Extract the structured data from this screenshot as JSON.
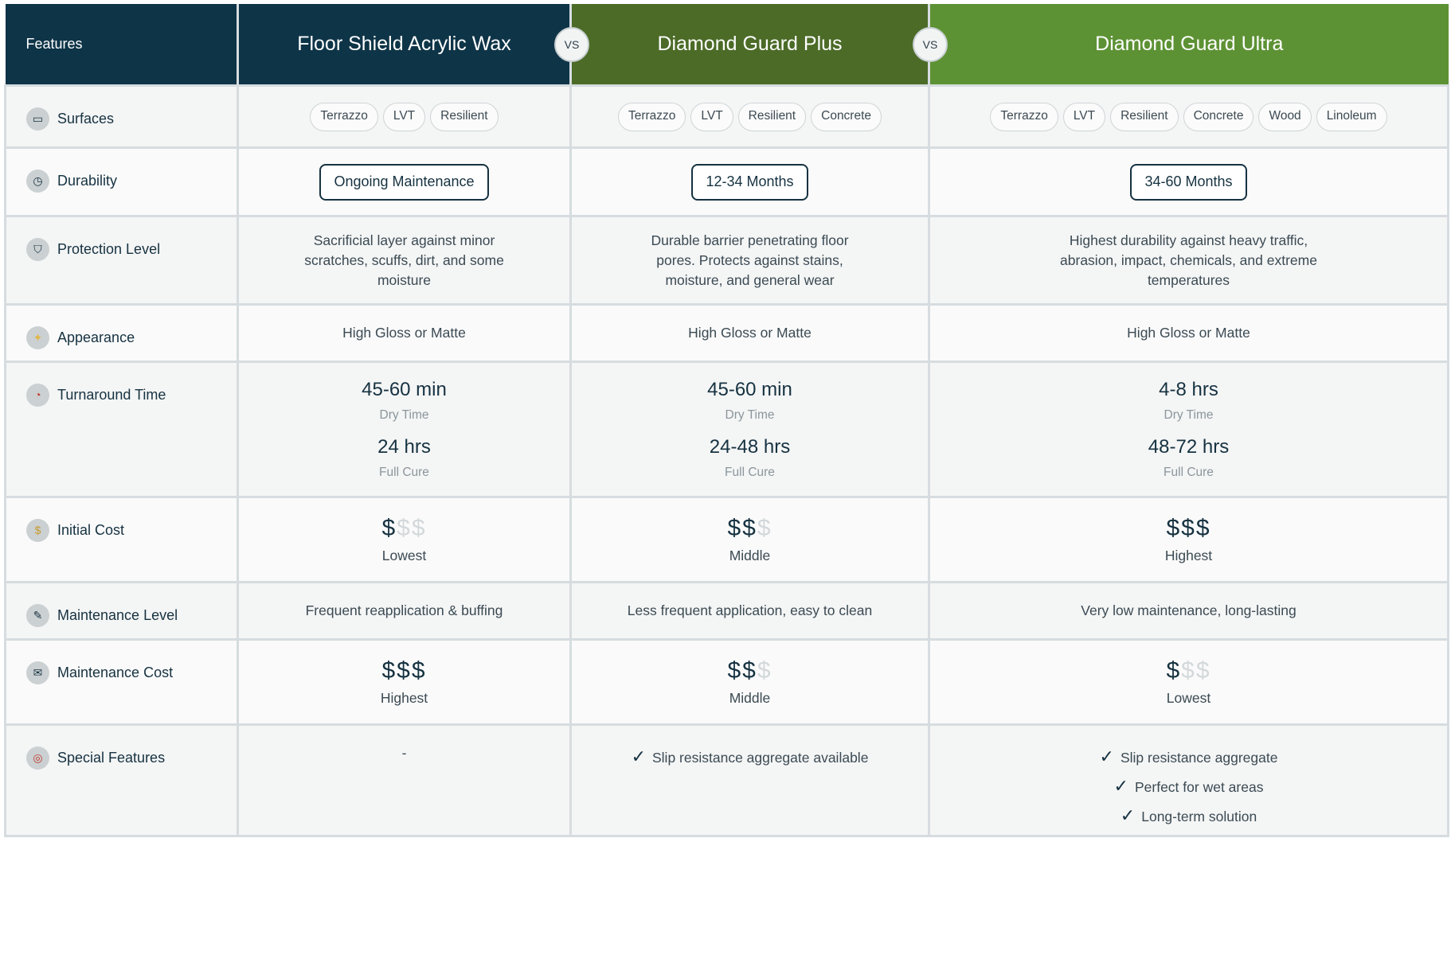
{
  "header": {
    "features_label": "Features",
    "products": [
      "Floor Shield Acrylic Wax",
      "Diamond Guard Plus",
      "Diamond Guard Ultra"
    ],
    "vs_label": "VS",
    "colors": [
      "#0e3447",
      "#4b6b27",
      "#5d9234"
    ]
  },
  "rows": {
    "surfaces": {
      "label": "Surfaces",
      "icon": "surfaces-icon",
      "values": [
        [
          "Terrazzo",
          "LVT",
          "Resilient"
        ],
        [
          "Terrazzo",
          "LVT",
          "Resilient",
          "Concrete"
        ],
        [
          "Terrazzo",
          "LVT",
          "Resilient",
          "Concrete",
          "Wood",
          "Linoleum"
        ]
      ]
    },
    "durability": {
      "label": "Durability",
      "icon": "stopwatch-icon",
      "values": [
        "Ongoing Maintenance",
        "12-34 Months",
        "34-60 Months"
      ]
    },
    "protection": {
      "label": "Protection Level",
      "icon": "shield-icon",
      "values": [
        "Sacrificial layer against minor scratches, scuffs, dirt, and some moisture",
        "Durable barrier penetrating floor pores. Protects against stains, moisture, and general wear",
        "Highest durability against heavy traffic, abrasion, impact, chemicals, and extreme temperatures"
      ]
    },
    "appearance": {
      "label": "Appearance",
      "icon": "sparkle-icon",
      "values": [
        "High Gloss or Matte",
        "High Gloss or Matte",
        "High Gloss or Matte"
      ]
    },
    "turnaround": {
      "label": "Turnaround Time",
      "icon": "clock-icon",
      "dry_label": "Dry Time",
      "cure_label": "Full Cure",
      "values": [
        {
          "dry": "45-60 min",
          "cure": "24 hrs"
        },
        {
          "dry": "45-60 min",
          "cure": "24-48 hrs"
        },
        {
          "dry": "4-8 hrs",
          "cure": "48-72 hrs"
        }
      ]
    },
    "initial_cost": {
      "label": "Initial Cost",
      "icon": "coin-icon",
      "values": [
        {
          "level": 1,
          "label": "Lowest"
        },
        {
          "level": 2,
          "label": "Middle"
        },
        {
          "level": 3,
          "label": "Highest"
        }
      ]
    },
    "maintenance_level": {
      "label": "Maintenance Level",
      "icon": "wrench-icon",
      "values": [
        "Frequent reapplication & buffing",
        "Less frequent application, easy to clean",
        "Very low maintenance, long-lasting"
      ]
    },
    "maintenance_cost": {
      "label": "Maintenance Cost",
      "icon": "money-icon",
      "values": [
        {
          "level": 3,
          "label": "Highest"
        },
        {
          "level": 2,
          "label": "Middle"
        },
        {
          "level": 1,
          "label": "Lowest"
        }
      ]
    },
    "special": {
      "label": "Special Features",
      "icon": "target-icon",
      "none_value": "-",
      "values": [
        [],
        [
          "Slip resistance aggregate available"
        ],
        [
          "Slip resistance aggregate",
          "Perfect for wet areas",
          "Long-term solution"
        ]
      ]
    }
  },
  "symbols": {
    "dollar": "$",
    "check": "✓"
  }
}
